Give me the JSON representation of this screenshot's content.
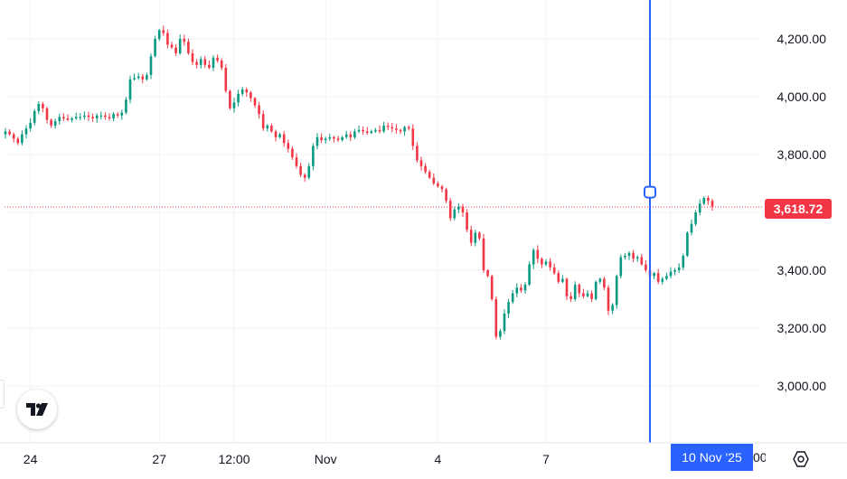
{
  "chart_data": {
    "type": "candlestick",
    "title": "",
    "xlabel": "",
    "ylabel": "",
    "ylim": [
      2850,
      4330
    ],
    "y_ticks": [
      3000,
      3200,
      3400,
      3600,
      3800,
      4000,
      4200
    ],
    "y_tick_labels": [
      "3,000.00",
      "3,200.00",
      "3,400.00",
      "3,600.00",
      "3,800.00",
      "4,000.00",
      "4,200.00"
    ],
    "x_ticks": [
      {
        "label": "24",
        "index": 6
      },
      {
        "label": "27",
        "index": 37
      },
      {
        "label": "12:00",
        "index": 55
      },
      {
        "label": "Nov",
        "index": 77
      },
      {
        "label": "4",
        "index": 104
      },
      {
        "label": "7",
        "index": 130
      },
      {
        "label": "00",
        "index": 160
      }
    ],
    "last_price": 3618.72,
    "last_price_label": "3,618.72",
    "crosshair": {
      "index": 155,
      "price": 3670,
      "date_label": "10 Nov '25"
    },
    "grid": true,
    "colors": {
      "up": "#089981",
      "down": "#f23645",
      "crosshair": "#2962ff",
      "price_line": "#f23645",
      "text": "#131722",
      "grid": "#f0f3fa"
    },
    "close": [
      3880,
      3870,
      3855,
      3840,
      3870,
      3890,
      3910,
      3950,
      3975,
      3960,
      3920,
      3900,
      3915,
      3930,
      3925,
      3920,
      3925,
      3930,
      3930,
      3935,
      3930,
      3925,
      3935,
      3935,
      3930,
      3925,
      3940,
      3935,
      3945,
      3990,
      4060,
      4065,
      4070,
      4060,
      4075,
      4140,
      4200,
      4230,
      4220,
      4180,
      4170,
      4150,
      4200,
      4190,
      4150,
      4120,
      4110,
      4130,
      4110,
      4100,
      4135,
      4125,
      4100,
      4020,
      3960,
      3980,
      4010,
      4025,
      4015,
      3995,
      3970,
      3940,
      3890,
      3900,
      3880,
      3860,
      3870,
      3840,
      3820,
      3790,
      3760,
      3730,
      3720,
      3760,
      3830,
      3860,
      3850,
      3855,
      3860,
      3855,
      3850,
      3860,
      3870,
      3860,
      3880,
      3885,
      3880,
      3875,
      3880,
      3885,
      3880,
      3900,
      3895,
      3890,
      3885,
      3880,
      3895,
      3890,
      3830,
      3780,
      3760,
      3740,
      3720,
      3700,
      3690,
      3680,
      3640,
      3580,
      3610,
      3620,
      3600,
      3540,
      3495,
      3530,
      3510,
      3400,
      3380,
      3300,
      3170,
      3190,
      3250,
      3290,
      3320,
      3340,
      3330,
      3350,
      3420,
      3470,
      3440,
      3420,
      3430,
      3410,
      3390,
      3360,
      3370,
      3310,
      3300,
      3350,
      3320,
      3310,
      3320,
      3300,
      3360,
      3370,
      3340,
      3260,
      3280,
      3380,
      3445,
      3450,
      3460,
      3440,
      3445,
      3420,
      3400,
      3380,
      3390,
      3360,
      3370,
      3380,
      3395,
      3400,
      3410,
      3450,
      3530,
      3560,
      3600,
      3630,
      3650,
      3640,
      3620
    ],
    "series": [
      {
        "name": "",
        "values": "see close"
      }
    ]
  },
  "icons": {
    "logo": "tradingview-logo-icon",
    "settings": "settings-gear-icon"
  }
}
